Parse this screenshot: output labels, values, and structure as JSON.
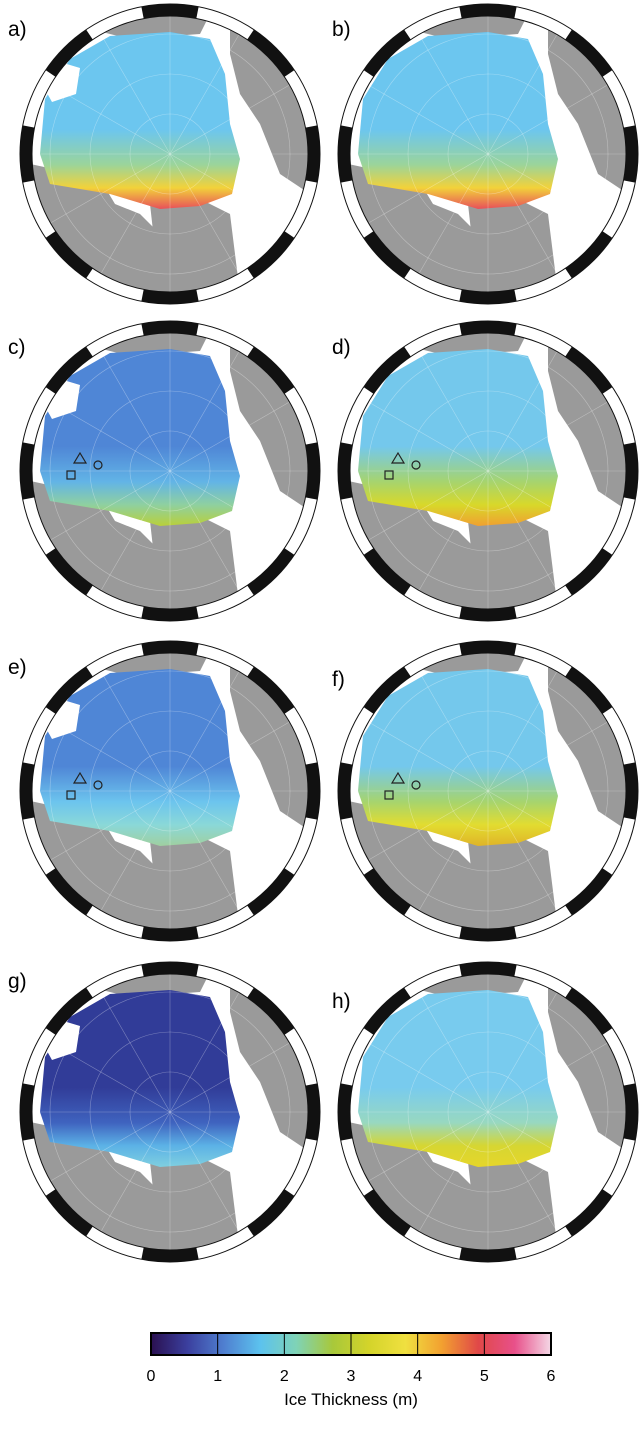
{
  "panels": [
    {
      "label": "a)",
      "style": "warm-front",
      "markers": false,
      "open_region": true
    },
    {
      "label": "b)",
      "style": "warm-front",
      "markers": false,
      "open_region": false
    },
    {
      "label": "c)",
      "style": "blue-mixed",
      "markers": true,
      "open_region": true
    },
    {
      "label": "d)",
      "style": "yellow-south",
      "markers": true,
      "open_region": false
    },
    {
      "label": "e)",
      "style": "blue-light",
      "markers": true,
      "open_region": true
    },
    {
      "label": "f)",
      "style": "yellow-south-strong",
      "markers": true,
      "open_region": false
    },
    {
      "label": "g)",
      "style": "dark-thin",
      "markers": false,
      "open_region": true
    },
    {
      "label": "h)",
      "style": "light-yellow",
      "markers": false,
      "open_region": false
    }
  ],
  "colorbar": {
    "title": "Ice Thickness (m)",
    "ticks": [
      "0",
      "1",
      "2",
      "3",
      "4",
      "5",
      "6"
    ],
    "colors": [
      "#2a1050",
      "#3b3f9e",
      "#4f7fd0",
      "#5cc2ee",
      "#7fd3b6",
      "#a8c83a",
      "#d4d42a",
      "#f0e040",
      "#f2a030",
      "#e04848",
      "#e8508a",
      "#f4d8e6"
    ]
  },
  "colors": {
    "land": "#9a9a9a",
    "frame": "#111111",
    "ocean": "#ffffff"
  }
}
